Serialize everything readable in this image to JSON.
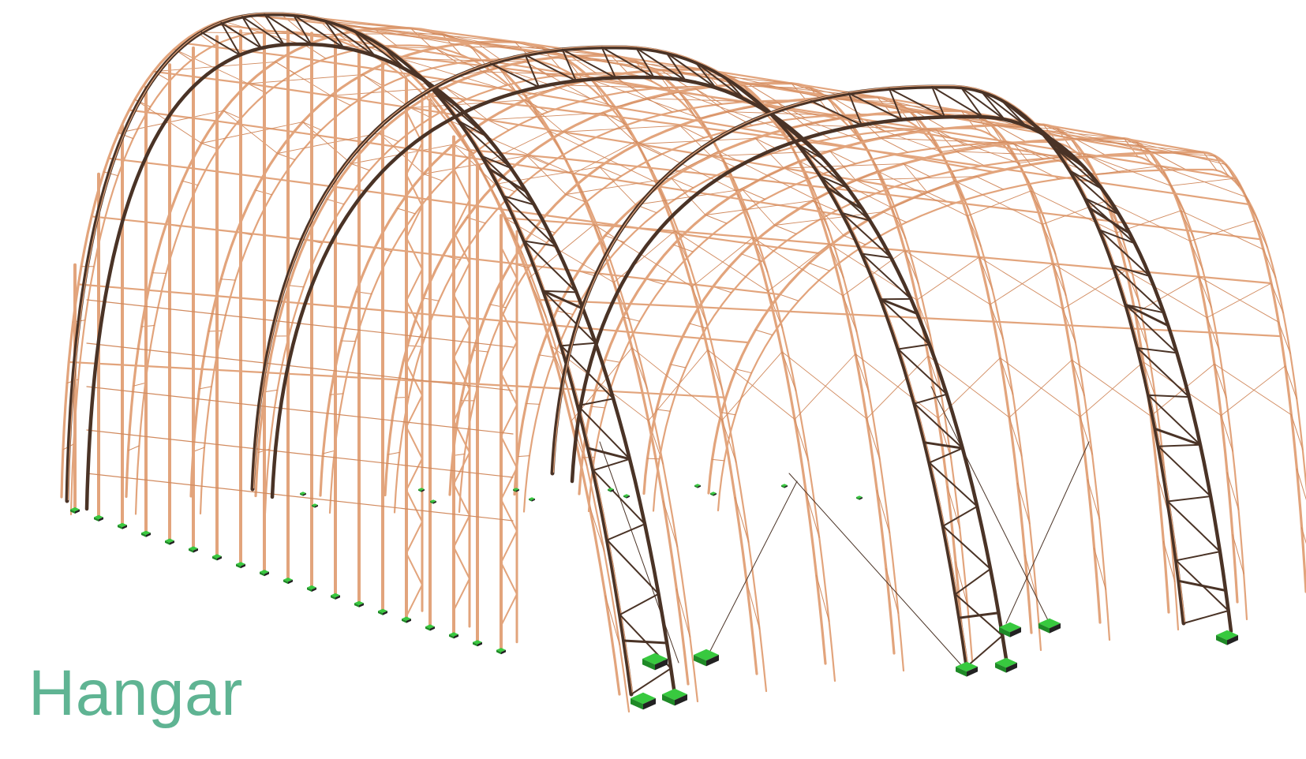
{
  "caption": "Hangar",
  "colors": {
    "background": "#ffffff",
    "caption": "#5fb493",
    "member_light": "#e2a47c",
    "member_thin": "#d18a5e",
    "member_dark": "#4a3326",
    "support_top": "#38c93f",
    "support_side": "#1f8a27"
  }
}
